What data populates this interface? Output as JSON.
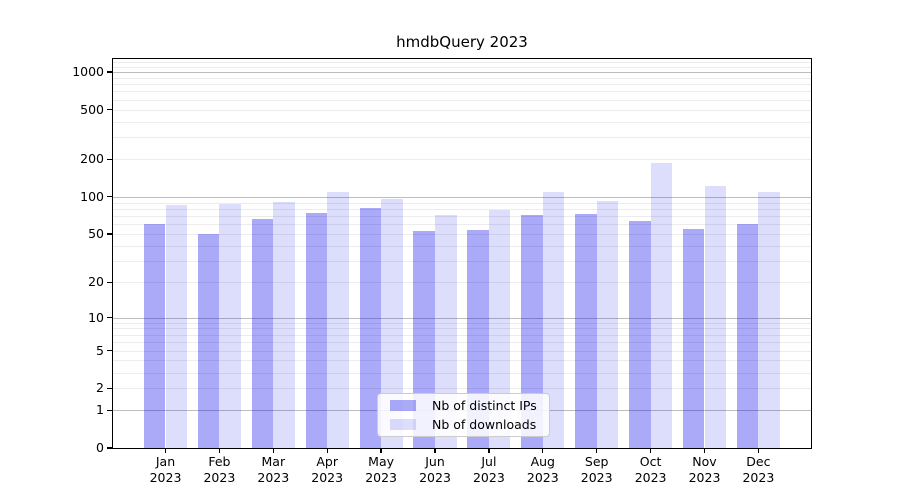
{
  "title": "hmdbQuery 2023",
  "chart_data": {
    "type": "bar",
    "title": "hmdbQuery 2023",
    "categories": [
      "Jan",
      "Feb",
      "Mar",
      "Apr",
      "May",
      "Jun",
      "Jul",
      "Aug",
      "Sep",
      "Oct",
      "Nov",
      "Dec"
    ],
    "x_tick_second_line": "2023",
    "series": [
      {
        "name": "Nb of distinct IPs",
        "color": "rgba(12,12,235,0.35)",
        "values": [
          60,
          50,
          66,
          74,
          82,
          53,
          54,
          71,
          73,
          64,
          55,
          60
        ]
      },
      {
        "name": "Nb of downloads",
        "color": "rgba(12,12,235,0.14)",
        "values": [
          86,
          88,
          91,
          110,
          96,
          72,
          78,
          110,
          93,
          187,
          122,
          110
        ]
      }
    ],
    "y_axis": {
      "scale": "log1p",
      "ticks": [
        0,
        1,
        2,
        5,
        10,
        20,
        50,
        100,
        200,
        500,
        1000
      ],
      "max": 1270,
      "major_gridlines": [
        1,
        10,
        100,
        1000
      ],
      "minor_gridlines": [
        2,
        3,
        4,
        5,
        6,
        7,
        8,
        9,
        20,
        30,
        40,
        50,
        60,
        70,
        80,
        90,
        200,
        300,
        400,
        500,
        600,
        700,
        800,
        900,
        1100,
        1200
      ]
    },
    "legend_position": "lower center",
    "grid": true,
    "colors": {
      "major_grid": "#bdbdbd",
      "minor_grid": "#ececec",
      "spine": "#000000",
      "text": "#000000"
    }
  }
}
